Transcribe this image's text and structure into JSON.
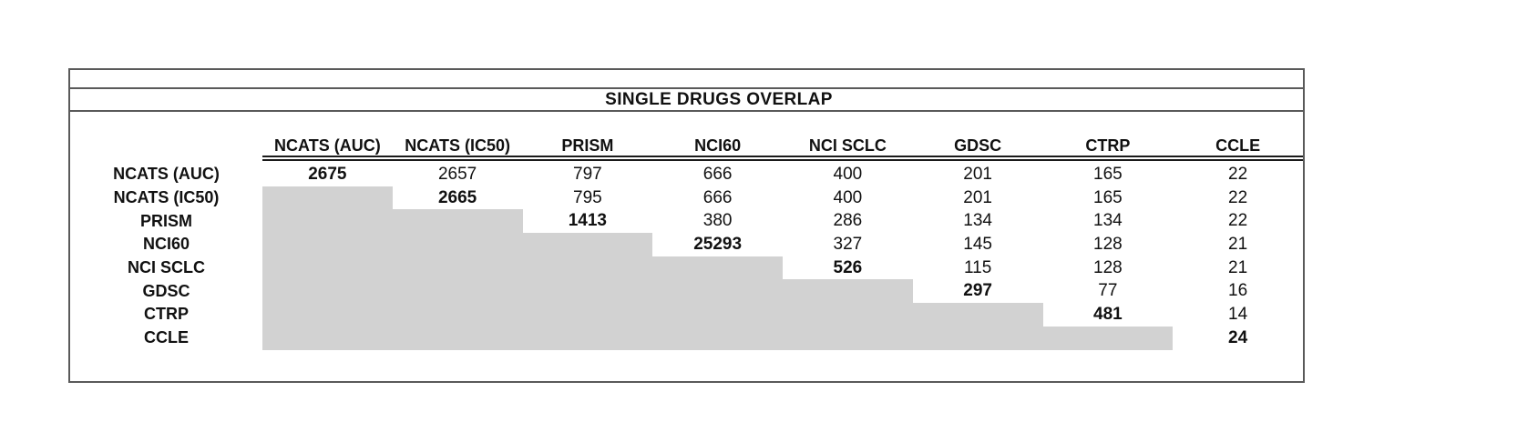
{
  "title": "SINGLE DRUGS OVERLAP",
  "table": {
    "column_headers": [
      "NCATS (AUC)",
      "NCATS (IC50)",
      "PRISM",
      "NCI60",
      "NCI SCLC",
      "GDSC",
      "CTRP",
      "CCLE"
    ],
    "rows": [
      {
        "label": "NCATS (AUC)",
        "cells": [
          "2675",
          "2657",
          "797",
          "666",
          "400",
          "201",
          "165",
          "22"
        ]
      },
      {
        "label": "NCATS (IC50)",
        "cells": [
          "",
          "2665",
          "795",
          "666",
          "400",
          "201",
          "165",
          "22"
        ]
      },
      {
        "label": "PRISM",
        "cells": [
          "",
          "",
          "1413",
          "380",
          "286",
          "134",
          "134",
          "22"
        ]
      },
      {
        "label": "NCI60",
        "cells": [
          "",
          "",
          "",
          "25293",
          "327",
          "145",
          "128",
          "21"
        ]
      },
      {
        "label": "NCI SCLC",
        "cells": [
          "",
          "",
          "",
          "",
          "526",
          "115",
          "128",
          "21"
        ]
      },
      {
        "label": "GDSC",
        "cells": [
          "",
          "",
          "",
          "",
          "",
          "297",
          "77",
          "16"
        ]
      },
      {
        "label": "CTRP",
        "cells": [
          "",
          "",
          "",
          "",
          "",
          "",
          "481",
          "14"
        ]
      },
      {
        "label": "CCLE",
        "cells": [
          "",
          "",
          "",
          "",
          "",
          "",
          "",
          "24"
        ]
      }
    ]
  },
  "chart_data": {
    "type": "table",
    "title": "SINGLE DRUGS OVERLAP",
    "columns": [
      "NCATS (AUC)",
      "NCATS (IC50)",
      "PRISM",
      "NCI60",
      "NCI SCLC",
      "GDSC",
      "CTRP",
      "CCLE"
    ],
    "rows": [
      "NCATS (AUC)",
      "NCATS (IC50)",
      "PRISM",
      "NCI60",
      "NCI SCLC",
      "GDSC",
      "CTRP",
      "CCLE"
    ],
    "matrix": [
      [
        2675,
        2657,
        797,
        666,
        400,
        201,
        165,
        22
      ],
      [
        null,
        2665,
        795,
        666,
        400,
        201,
        165,
        22
      ],
      [
        null,
        null,
        1413,
        380,
        286,
        134,
        134,
        22
      ],
      [
        null,
        null,
        null,
        25293,
        327,
        145,
        128,
        21
      ],
      [
        null,
        null,
        null,
        null,
        526,
        115,
        128,
        21
      ],
      [
        null,
        null,
        null,
        null,
        null,
        297,
        77,
        16
      ],
      [
        null,
        null,
        null,
        null,
        null,
        null,
        481,
        14
      ],
      [
        null,
        null,
        null,
        null,
        null,
        null,
        null,
        24
      ]
    ],
    "layout_hints": "upper-triangular matrix; diagonal values bold; lower triangle shaded gray; double rule under column headers"
  },
  "colors": {
    "shaded_cell": "#d2d2d2",
    "border": "#5a5a5a",
    "header_rule": "#1a1a1a",
    "text": "#111111"
  }
}
